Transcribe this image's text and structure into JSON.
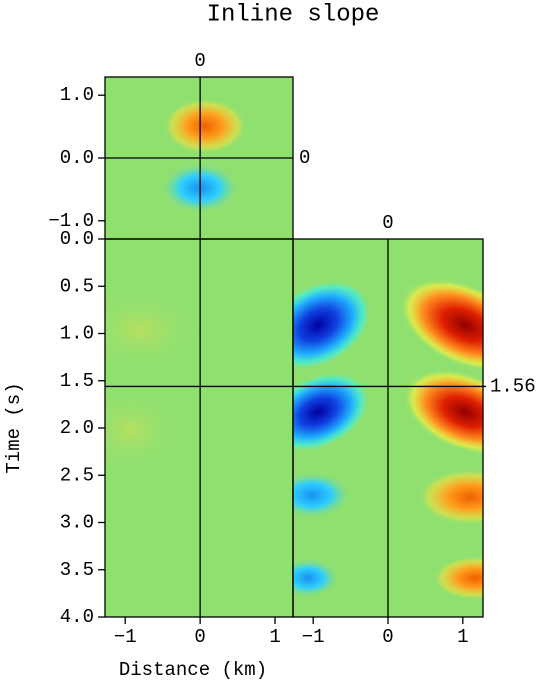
{
  "chart_data": {
    "type": "cube",
    "title": "Inline slope",
    "x_label": "Distance (km)",
    "y_label": "Time (s)",
    "slope_panel": {
      "ylim": [
        1.29,
        -1.29
      ],
      "yticks": [
        {
          "value": 1,
          "label": "1.0"
        },
        {
          "value": 0,
          "label": "0.0"
        },
        {
          "value": -1,
          "label": "−1.0"
        }
      ],
      "crosshair_y": 0
    },
    "time_panel": {
      "ylim": [
        0,
        4
      ],
      "yticks": [
        {
          "value": 0,
          "label": "0.0"
        },
        0.5,
        {
          "value": 1,
          "label": "1.0"
        },
        1.5,
        {
          "value": 2,
          "label": "2.0"
        },
        2.5,
        {
          "value": 3,
          "label": "3.0"
        },
        3.5,
        {
          "value": 4,
          "label": "4.0"
        }
      ],
      "crosshair_y": 1.56
    },
    "left_panel": {
      "xlim": [
        -1.27,
        1.24
      ],
      "xticks": [
        {
          "value": -1,
          "label": "−1"
        },
        0,
        1
      ],
      "crosshair_x": 0
    },
    "right_panel": {
      "xlim": [
        -1.27,
        1.27
      ],
      "xticks": [
        {
          "value": -1,
          "label": "−1"
        },
        0,
        1
      ],
      "crosshair_x": 0
    }
  }
}
